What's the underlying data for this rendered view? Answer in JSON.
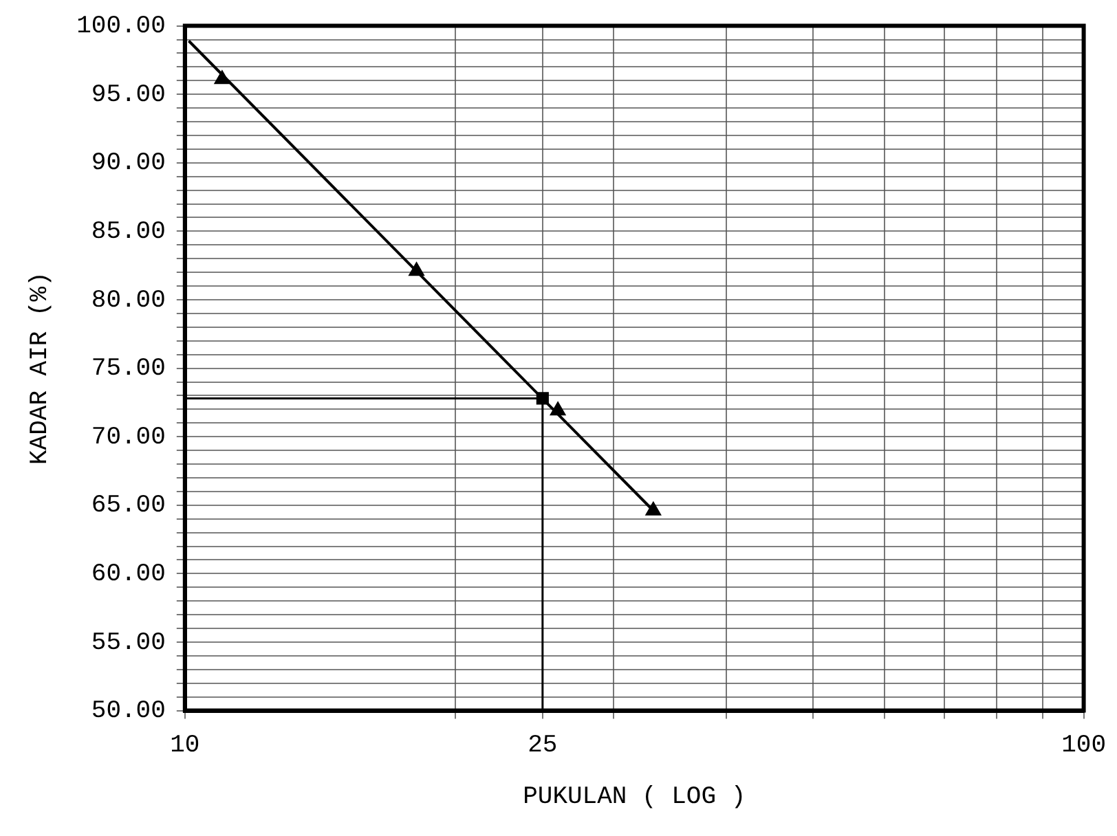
{
  "chart_data": {
    "type": "scatter",
    "xlabel": "PUKULAN ( LOG )",
    "ylabel": "KADAR AIR (%)",
    "log": "x",
    "xlim": [
      10,
      100
    ],
    "ylim": [
      50,
      100
    ],
    "xticks": [
      10,
      {
        "value": 20,
        "label": null
      },
      {
        "value": 25,
        "label": "25"
      },
      {
        "value": 30,
        "label": null
      },
      {
        "value": 40,
        "label": null
      },
      {
        "value": 50,
        "label": null
      },
      {
        "value": 60,
        "label": null
      },
      {
        "value": 70,
        "label": null
      },
      {
        "value": 80,
        "label": null
      },
      {
        "value": 90,
        "label": null
      },
      100
    ],
    "yticks": [
      {
        "value": 50,
        "label": "50.00"
      },
      {
        "value": 51,
        "label": null
      },
      {
        "value": 52,
        "label": null
      },
      {
        "value": 53,
        "label": null
      },
      {
        "value": 54,
        "label": null
      },
      {
        "value": 55,
        "label": "55.00"
      },
      {
        "value": 56,
        "label": null
      },
      {
        "value": 57,
        "label": null
      },
      {
        "value": 58,
        "label": null
      },
      {
        "value": 59,
        "label": null
      },
      {
        "value": 60,
        "label": "60.00"
      },
      {
        "value": 61,
        "label": null
      },
      {
        "value": 62,
        "label": null
      },
      {
        "value": 63,
        "label": null
      },
      {
        "value": 64,
        "label": null
      },
      {
        "value": 65,
        "label": "65.00"
      },
      {
        "value": 66,
        "label": null
      },
      {
        "value": 67,
        "label": null
      },
      {
        "value": 68,
        "label": null
      },
      {
        "value": 69,
        "label": null
      },
      {
        "value": 70,
        "label": "70.00"
      },
      {
        "value": 71,
        "label": null
      },
      {
        "value": 72,
        "label": null
      },
      {
        "value": 73,
        "label": null
      },
      {
        "value": 74,
        "label": null
      },
      {
        "value": 75,
        "label": "75.00"
      },
      {
        "value": 76,
        "label": null
      },
      {
        "value": 77,
        "label": null
      },
      {
        "value": 78,
        "label": null
      },
      {
        "value": 79,
        "label": null
      },
      {
        "value": 80,
        "label": "80.00"
      },
      {
        "value": 81,
        "label": null
      },
      {
        "value": 82,
        "label": null
      },
      {
        "value": 83,
        "label": null
      },
      {
        "value": 84,
        "label": null
      },
      {
        "value": 85,
        "label": "85.00"
      },
      {
        "value": 86,
        "label": null
      },
      {
        "value": 87,
        "label": null
      },
      {
        "value": 88,
        "label": null
      },
      {
        "value": 89,
        "label": null
      },
      {
        "value": 90,
        "label": "90.00"
      },
      {
        "value": 91,
        "label": null
      },
      {
        "value": 92,
        "label": null
      },
      {
        "value": 93,
        "label": null
      },
      {
        "value": 94,
        "label": null
      },
      {
        "value": 95,
        "label": "95.00"
      },
      {
        "value": 96,
        "label": null
      },
      {
        "value": 97,
        "label": null
      },
      {
        "value": 98,
        "label": null
      },
      {
        "value": 99,
        "label": null
      },
      {
        "value": 100,
        "label": "100.00"
      }
    ],
    "grid": true,
    "legend": false,
    "series": [
      {
        "type": "scatter",
        "marker": "triangle",
        "color": "#000000",
        "x": [
          11.0,
          18.1,
          26.0,
          33.2
        ],
        "values": [
          96.1,
          82.1,
          71.9,
          64.6
        ]
      },
      {
        "type": "line",
        "marker": "none",
        "line_style": "solid",
        "color": "#000000",
        "x": [
          10.1,
          33.2
        ],
        "values": [
          98.9,
          64.6
        ]
      },
      {
        "type": "scatter",
        "marker": "square",
        "color": "#000000",
        "x": [
          25
        ],
        "values": [
          72.8
        ]
      }
    ],
    "ref_lines": [
      {
        "axis": "x",
        "value": 25,
        "color": "#000000"
      },
      {
        "axis": "y",
        "value": 72.8,
        "color": "#000000"
      }
    ]
  }
}
